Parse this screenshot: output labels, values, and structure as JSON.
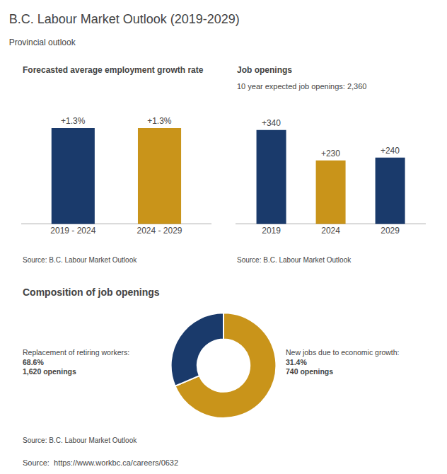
{
  "title": "B.C. Labour Market Outlook (2019-2029)",
  "subtitle": "Provincial outlook",
  "annotations": [
    "Source:  https://www.workbc.ca/careers/0632"
  ],
  "chart_data": [
    {
      "type": "bar",
      "title": "Forecasted average employment growth rate",
      "categories": [
        "2019 - 2024",
        "2024 - 2029"
      ],
      "values": [
        1.3,
        1.3
      ],
      "colors": [
        "#1a3a6b",
        "#c9941a"
      ],
      "data_labels": true,
      "value_labels": [
        "+1.3%",
        "+1.3%"
      ],
      "ylim": [
        0,
        1.5
      ],
      "tick_labels": "x",
      "grid": false,
      "annotations": [
        "Source: B.C. Labour Market Outlook"
      ]
    },
    {
      "type": "bar",
      "title": "Job openings",
      "subtitle": "10 year expected job openings: 2,360",
      "categories": [
        "2019",
        "2024",
        "2029"
      ],
      "values": [
        340,
        230,
        240
      ],
      "colors": [
        "#1a3a6b",
        "#c9941a",
        "#1a3a6b"
      ],
      "data_labels": true,
      "value_labels": [
        "+340",
        "+230",
        "+240"
      ],
      "ylim": [
        0,
        400
      ],
      "tick_labels": "x",
      "grid": false,
      "annotations": [
        "Source: B.C. Labour Market Outlook"
      ]
    },
    {
      "type": "pie",
      "title": "Composition of job openings",
      "values": [
        68.6,
        31.4
      ],
      "colors": [
        "#c9941a",
        "#1a3a6b"
      ],
      "data_labels": true,
      "value_labels": [
        "68.6%",
        "31.4%"
      ],
      "annotations": [
        "Replacement of retiring workers:",
        "1,620 openings",
        "New jobs due to economic growth:",
        "740 openings",
        "Source: B.C. Labour Market Outlook"
      ]
    }
  ]
}
